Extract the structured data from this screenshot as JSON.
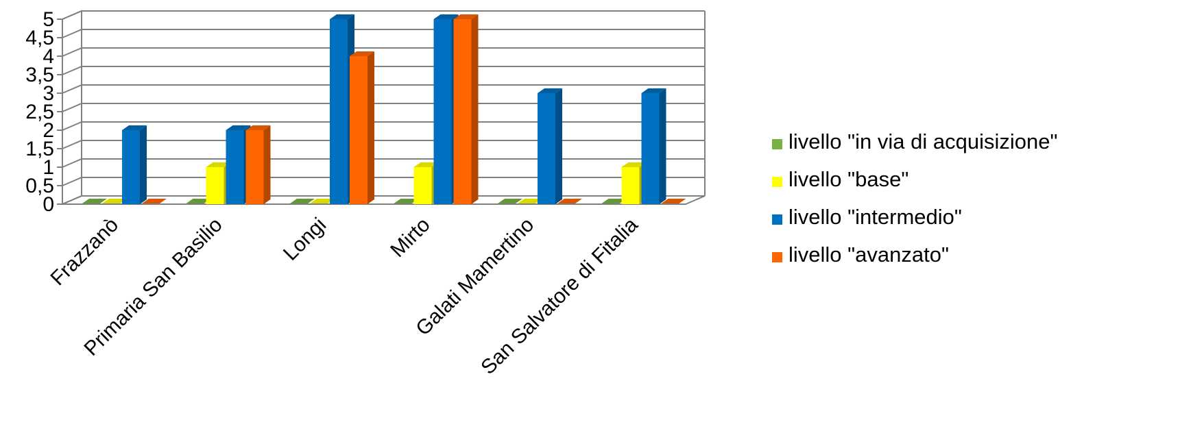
{
  "chart_data": {
    "type": "bar",
    "categories": [
      "Frazzanò",
      "Primaria San Basilio",
      "Longi",
      "Mirto",
      "Galati Mamertino",
      "San Salvatore di Fitalia"
    ],
    "series": [
      {
        "name": "livello \"in via di acquisizione\"",
        "color": "#77B342",
        "values": [
          0,
          0,
          0,
          0,
          0,
          0
        ]
      },
      {
        "name": "livello \"base\"",
        "color": "#FFFF00",
        "values": [
          0,
          1,
          0,
          1,
          0,
          1
        ]
      },
      {
        "name": "livello \"intermedio\"",
        "color": "#0070C0",
        "values": [
          2,
          2,
          5,
          5,
          3,
          3
        ]
      },
      {
        "name": "livello \"avanzato\"",
        "color": "#FF6600",
        "values": [
          0,
          2,
          4,
          5,
          0,
          0
        ]
      }
    ],
    "y_ticks": [
      "0",
      "0,5",
      "1",
      "1,5",
      "2",
      "2,5",
      "3",
      "3,5",
      "4",
      "4,5",
      "5"
    ],
    "ylim": [
      0,
      5
    ],
    "grid": true,
    "legend_position": "right",
    "title": "",
    "xlabel": "",
    "ylabel": ""
  }
}
